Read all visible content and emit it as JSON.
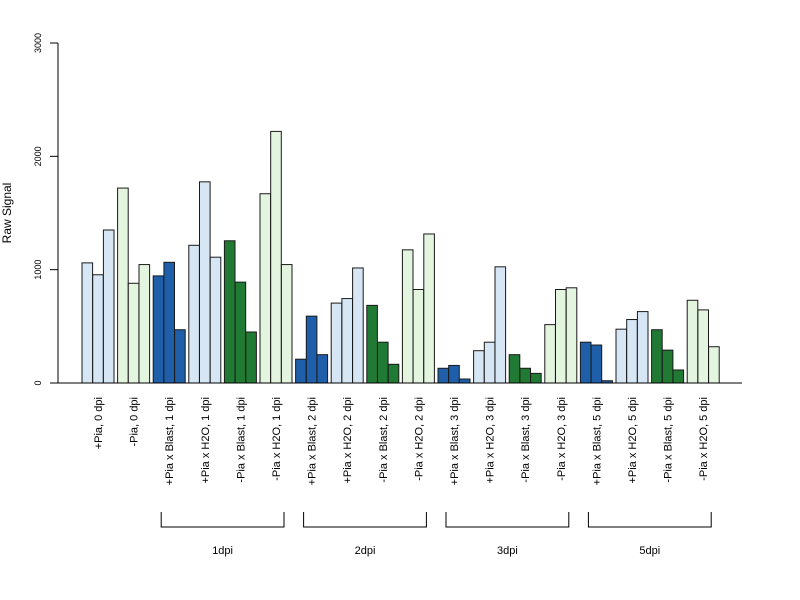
{
  "chart_data": {
    "type": "bar",
    "title": "",
    "xlabel": "",
    "ylabel": "Raw Signal",
    "ylim": [
      0,
      3000
    ],
    "yticks": [
      0,
      1000,
      2000,
      3000
    ],
    "grid": false,
    "legend": "none",
    "colors": {
      "pia_blast": "#1f5ea8",
      "pia_h2o": "#d6e6f5",
      "nopia_blast": "#217a34",
      "nopia_h2o": "#e4f5df",
      "outline": "#1a1a1a"
    },
    "categories": [
      {
        "label": "+Pia, 0 dpi",
        "color": "pia_h2o",
        "values": [
          1060,
          955,
          1350
        ]
      },
      {
        "label": "-Pia, 0 dpi",
        "color": "nopia_h2o",
        "values": [
          1720,
          880,
          1045
        ]
      },
      {
        "label": "+Pia x Blast, 1 dpi",
        "color": "pia_blast",
        "values": [
          945,
          1065,
          470
        ]
      },
      {
        "label": "+Pia x H2O, 1 dpi",
        "color": "pia_h2o",
        "values": [
          1215,
          1775,
          1110
        ]
      },
      {
        "label": "-Pia x Blast, 1 dpi",
        "color": "nopia_blast",
        "values": [
          1255,
          890,
          450
        ]
      },
      {
        "label": "-Pia x H2O, 1 dpi",
        "color": "nopia_h2o",
        "values": [
          1670,
          2220,
          1045
        ]
      },
      {
        "label": "+Pia x Blast, 2 dpi",
        "color": "pia_blast",
        "values": [
          210,
          590,
          250
        ]
      },
      {
        "label": "+Pia x H2O, 2 dpi",
        "color": "pia_h2o",
        "values": [
          705,
          745,
          1015
        ]
      },
      {
        "label": "-Pia x Blast, 2 dpi",
        "color": "nopia_blast",
        "values": [
          685,
          360,
          165
        ]
      },
      {
        "label": "-Pia x H2O, 2 dpi",
        "color": "nopia_h2o",
        "values": [
          1175,
          825,
          1315
        ]
      },
      {
        "label": "+Pia x Blast, 3 dpi",
        "color": "pia_blast",
        "values": [
          130,
          155,
          35
        ]
      },
      {
        "label": "+Pia x H2O, 3 dpi",
        "color": "pia_h2o",
        "values": [
          285,
          360,
          1025
        ]
      },
      {
        "label": "-Pia x Blast, 3 dpi",
        "color": "nopia_blast",
        "values": [
          250,
          130,
          85
        ]
      },
      {
        "label": "-Pia x H2O, 3 dpi",
        "color": "nopia_h2o",
        "values": [
          515,
          825,
          840
        ]
      },
      {
        "label": "+Pia x Blast, 5 dpi",
        "color": "pia_blast",
        "values": [
          360,
          335,
          20
        ]
      },
      {
        "label": "+Pia x H2O, 5 dpi",
        "color": "pia_h2o",
        "values": [
          475,
          560,
          630
        ]
      },
      {
        "label": "-Pia x Blast, 5 dpi",
        "color": "nopia_blast",
        "values": [
          470,
          290,
          115
        ]
      },
      {
        "label": "-Pia x H2O, 5 dpi",
        "color": "nopia_h2o",
        "values": [
          730,
          645,
          320
        ]
      }
    ],
    "groups": [
      {
        "label": "1dpi",
        "from": 2,
        "to": 5
      },
      {
        "label": "2dpi",
        "from": 6,
        "to": 9
      },
      {
        "label": "3dpi",
        "from": 10,
        "to": 13
      },
      {
        "label": "5dpi",
        "from": 14,
        "to": 17
      }
    ]
  }
}
